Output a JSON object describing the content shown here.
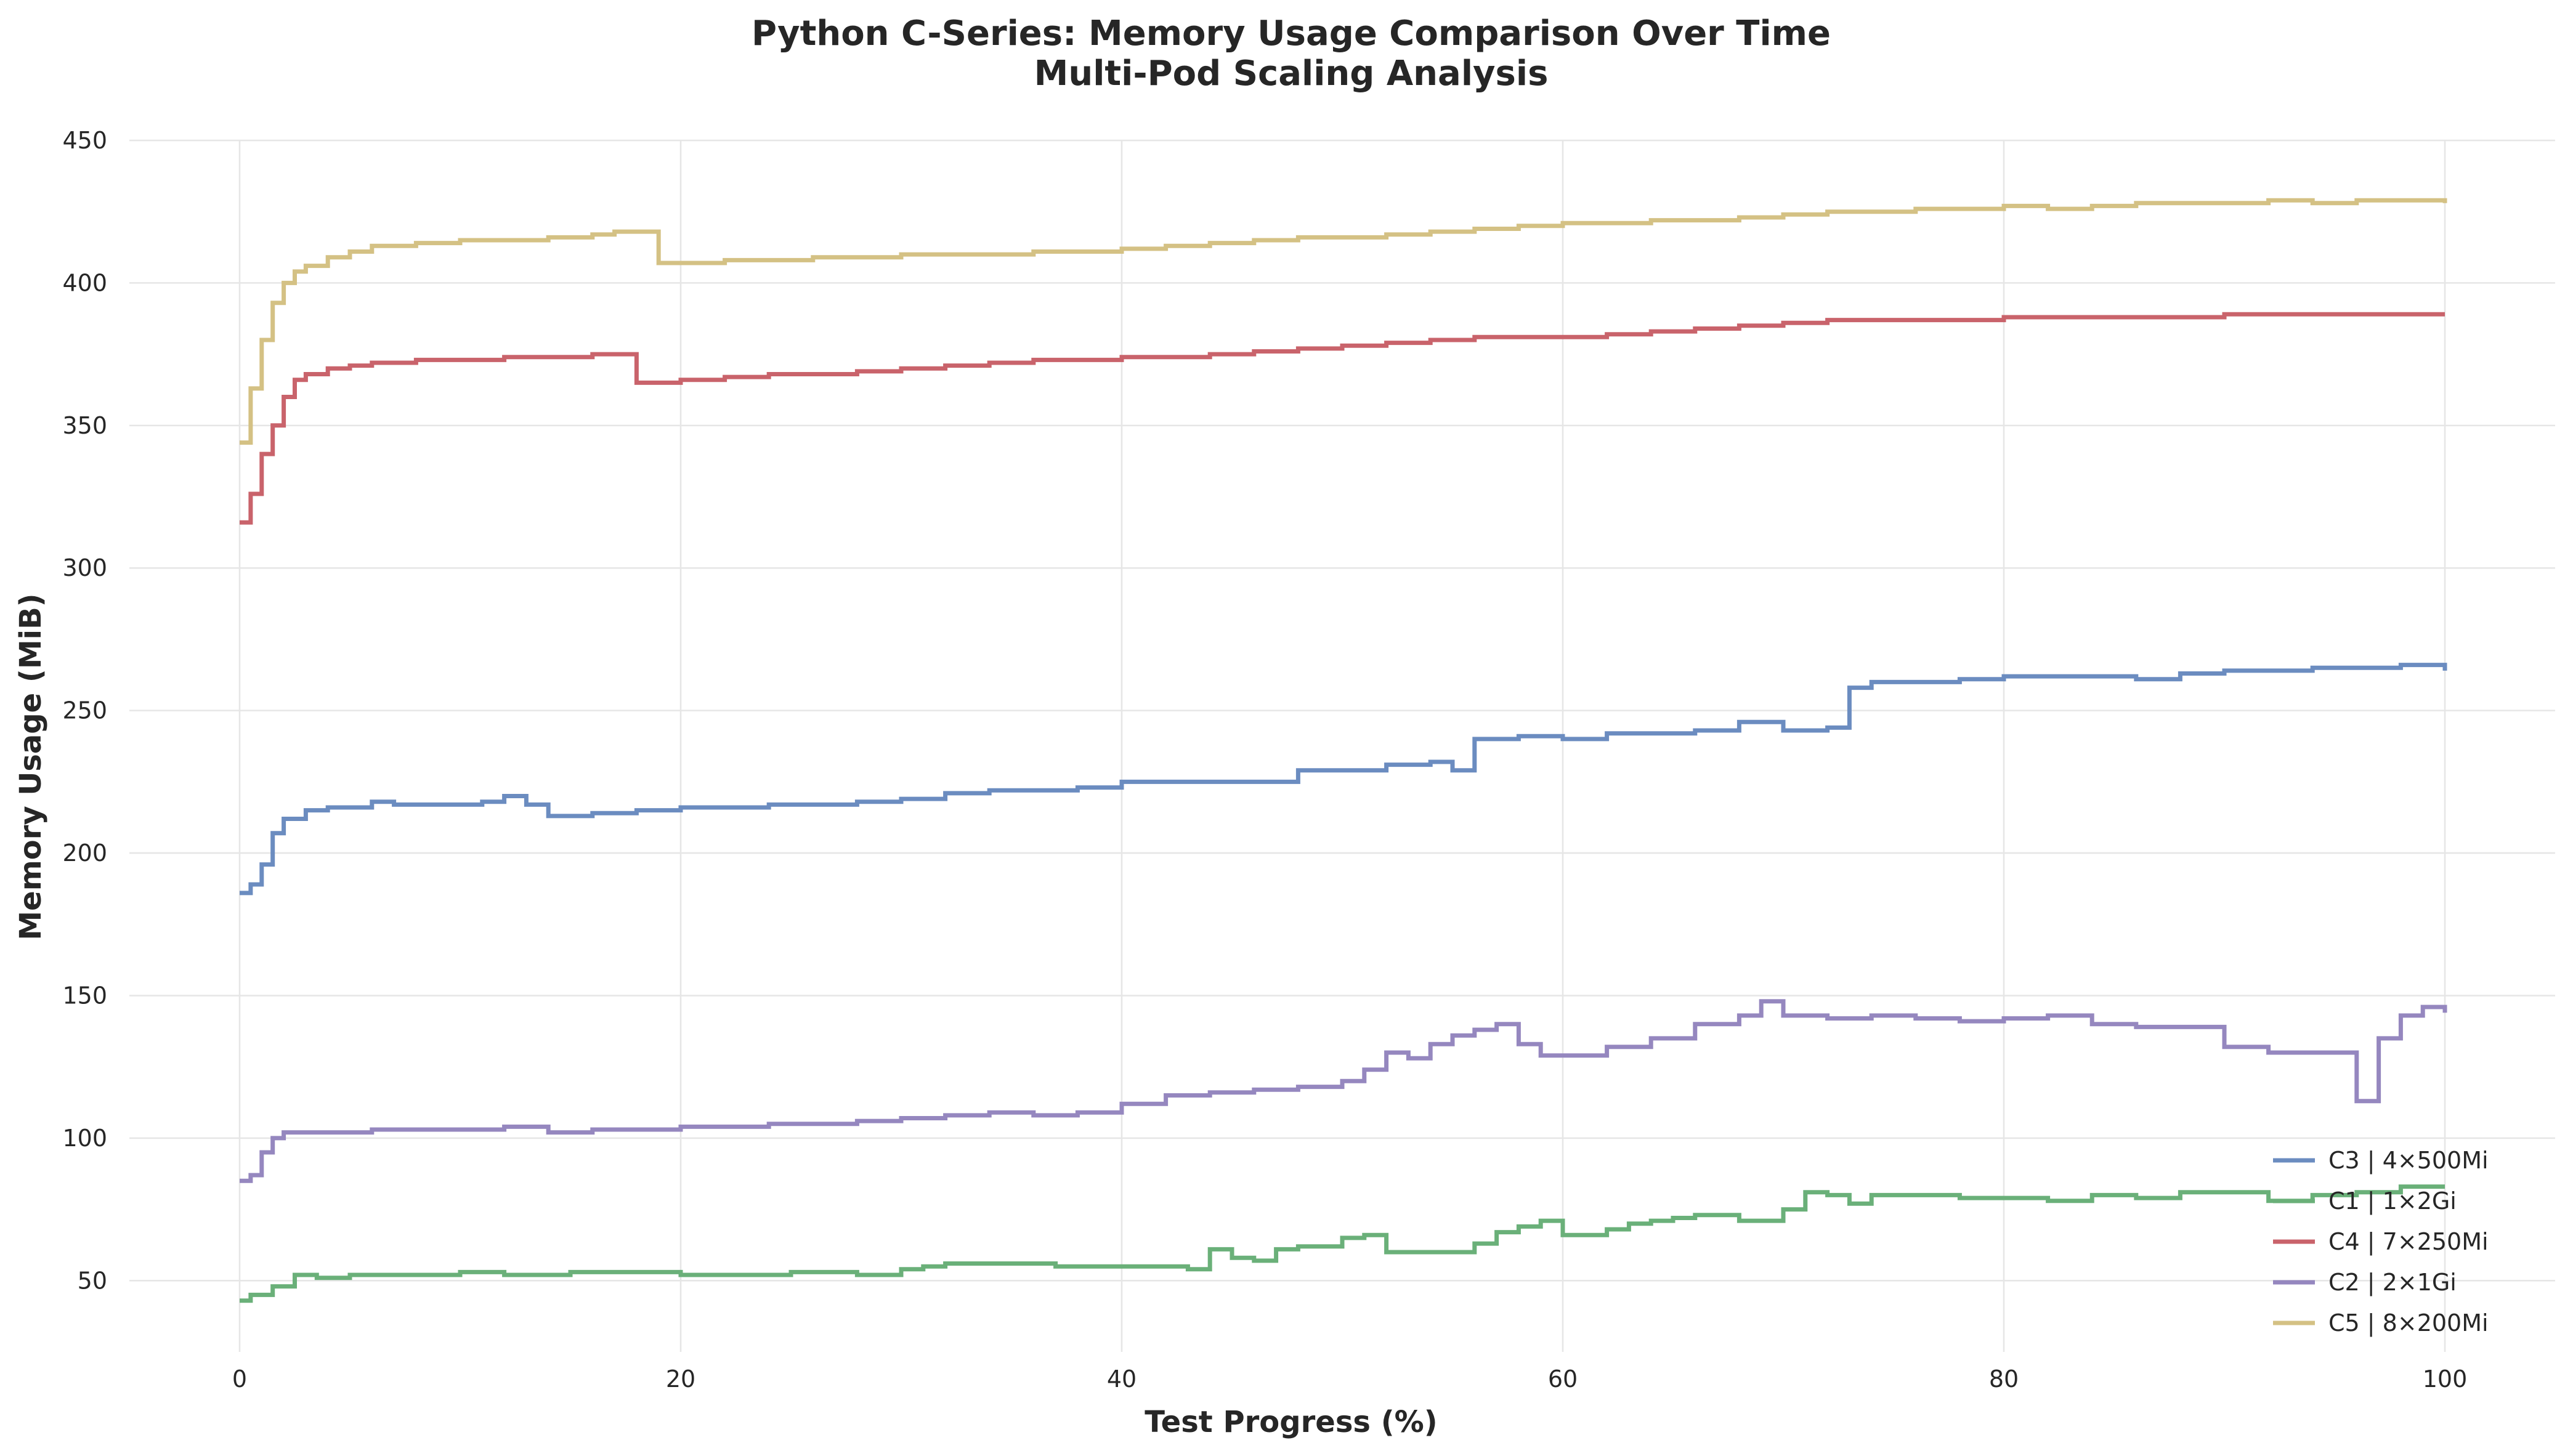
{
  "chart_data": {
    "type": "line",
    "step": true,
    "title": "Python C-Series: Memory Usage Comparison Over Time",
    "subtitle": "Multi-Pod Scaling Analysis",
    "xlabel": "Test Progress (%)",
    "ylabel": "Memory Usage (MiB)",
    "xlim": [
      -5,
      105
    ],
    "ylim": [
      25,
      450
    ],
    "xticks": [
      0,
      20,
      40,
      60,
      80,
      100
    ],
    "yticks": [
      50,
      100,
      150,
      200,
      250,
      300,
      350,
      400,
      450
    ],
    "grid": true,
    "legend_position": "lower-right",
    "series": [
      {
        "name": "C3 | 4×500Mi",
        "color": "#6b8cc0",
        "x": [
          0,
          0.5,
          1,
          1.5,
          2,
          3,
          4,
          5,
          6,
          7,
          8,
          9,
          10,
          11,
          12,
          13,
          14,
          15,
          16,
          17,
          18,
          19,
          20,
          22,
          24,
          26,
          28,
          30,
          32,
          34,
          36,
          38,
          40,
          42,
          44,
          46,
          48,
          50,
          52,
          54,
          55,
          56,
          58,
          60,
          62,
          64,
          66,
          68,
          70,
          72,
          73,
          74,
          76,
          78,
          80,
          82,
          84,
          86,
          88,
          90,
          92,
          94,
          96,
          98,
          100
        ],
        "y": [
          186,
          189,
          196,
          207,
          212,
          215,
          216,
          216,
          218,
          217,
          217,
          217,
          217,
          218,
          220,
          217,
          213,
          213,
          214,
          214,
          215,
          215,
          216,
          216,
          217,
          217,
          218,
          219,
          221,
          222,
          222,
          223,
          225,
          225,
          225,
          225,
          229,
          229,
          231,
          232,
          229,
          240,
          241,
          240,
          242,
          242,
          243,
          246,
          243,
          244,
          258,
          260,
          260,
          261,
          262,
          262,
          262,
          261,
          263,
          264,
          264,
          265,
          265,
          266,
          264
        ]
      },
      {
        "name": "C1 | 1×2Gi",
        "color": "#6ab079",
        "x": [
          0,
          0.5,
          1.5,
          2.5,
          3.5,
          5,
          7,
          10,
          12,
          15,
          18,
          20,
          25,
          27,
          28,
          30,
          31,
          32,
          35,
          37,
          38,
          40,
          41,
          43,
          44,
          45,
          46,
          47,
          48,
          49,
          50,
          51,
          52,
          53,
          55,
          56,
          57,
          58,
          59,
          60,
          62,
          63,
          64,
          65,
          66,
          68,
          69,
          70,
          71,
          72,
          73,
          74,
          76,
          78,
          80,
          82,
          84,
          86,
          88,
          90,
          92,
          94,
          96,
          98,
          100
        ],
        "y": [
          43,
          45,
          48,
          52,
          51,
          52,
          52,
          53,
          52,
          53,
          53,
          52,
          53,
          53,
          52,
          54,
          55,
          56,
          56,
          55,
          55,
          55,
          55,
          54,
          61,
          58,
          57,
          61,
          62,
          62,
          65,
          66,
          60,
          60,
          60,
          63,
          67,
          69,
          71,
          66,
          68,
          70,
          71,
          72,
          73,
          71,
          71,
          75,
          81,
          80,
          77,
          80,
          80,
          79,
          79,
          78,
          80,
          79,
          81,
          81,
          78,
          80,
          81,
          83,
          83
        ]
      },
      {
        "name": "C4 | 7×250Mi",
        "color": "#c9636b",
        "x": [
          0,
          0.5,
          1,
          1.5,
          2,
          2.5,
          3,
          4,
          5,
          6,
          8,
          10,
          12,
          14,
          16,
          17,
          18,
          20,
          22,
          24,
          26,
          28,
          30,
          32,
          34,
          36,
          38,
          40,
          42,
          44,
          46,
          48,
          50,
          52,
          54,
          56,
          58,
          60,
          62,
          64,
          66,
          68,
          70,
          72,
          74,
          76,
          78,
          80,
          82,
          84,
          86,
          88,
          90,
          92,
          94,
          96,
          98,
          100
        ],
        "y": [
          316,
          326,
          340,
          350,
          360,
          366,
          368,
          370,
          371,
          372,
          373,
          373,
          374,
          374,
          375,
          375,
          365,
          366,
          367,
          368,
          368,
          369,
          370,
          371,
          372,
          373,
          373,
          374,
          374,
          375,
          376,
          377,
          378,
          379,
          380,
          381,
          381,
          381,
          382,
          383,
          384,
          385,
          386,
          387,
          387,
          387,
          387,
          388,
          388,
          388,
          388,
          388,
          389,
          389,
          389,
          389,
          389,
          389
        ]
      },
      {
        "name": "C2 | 2×1Gi",
        "color": "#9587bf",
        "x": [
          0,
          0.5,
          1,
          1.5,
          2,
          4,
          6,
          8,
          10,
          12,
          14,
          16,
          18,
          20,
          22,
          24,
          26,
          28,
          30,
          32,
          34,
          36,
          38,
          40,
          42,
          44,
          46,
          48,
          50,
          51,
          52,
          53,
          54,
          55,
          56,
          57,
          58,
          59,
          60,
          62,
          64,
          66,
          68,
          69,
          70,
          72,
          74,
          76,
          78,
          80,
          82,
          84,
          86,
          88,
          89,
          90,
          92,
          94,
          96,
          97,
          98,
          99,
          100
        ],
        "y": [
          85,
          87,
          95,
          100,
          102,
          102,
          103,
          103,
          103,
          104,
          102,
          103,
          103,
          104,
          104,
          105,
          105,
          106,
          107,
          108,
          109,
          108,
          109,
          112,
          115,
          116,
          117,
          118,
          120,
          124,
          130,
          128,
          133,
          136,
          138,
          140,
          133,
          129,
          129,
          132,
          135,
          140,
          143,
          148,
          143,
          142,
          143,
          142,
          141,
          142,
          143,
          140,
          139,
          139,
          139,
          132,
          130,
          130,
          113,
          135,
          143,
          146,
          144
        ]
      },
      {
        "name": "C5 | 8×200Mi",
        "color": "#d4c184",
        "x": [
          0,
          0.5,
          1,
          1.5,
          2,
          2.5,
          3,
          4,
          5,
          6,
          8,
          10,
          12,
          14,
          16,
          17,
          18,
          19,
          20,
          22,
          24,
          26,
          28,
          30,
          32,
          34,
          36,
          38,
          40,
          42,
          44,
          46,
          48,
          50,
          52,
          54,
          56,
          58,
          60,
          62,
          64,
          66,
          68,
          70,
          72,
          74,
          76,
          78,
          80,
          82,
          84,
          86,
          88,
          90,
          92,
          94,
          96,
          98,
          100
        ],
        "y": [
          344,
          363,
          380,
          393,
          400,
          404,
          406,
          409,
          411,
          413,
          414,
          415,
          415,
          416,
          417,
          418,
          418,
          407,
          407,
          408,
          408,
          409,
          409,
          410,
          410,
          410,
          411,
          411,
          412,
          413,
          414,
          415,
          416,
          416,
          417,
          418,
          419,
          420,
          421,
          421,
          422,
          422,
          423,
          424,
          425,
          425,
          426,
          426,
          427,
          426,
          427,
          428,
          428,
          428,
          429,
          428,
          429,
          429,
          428
        ]
      }
    ]
  }
}
